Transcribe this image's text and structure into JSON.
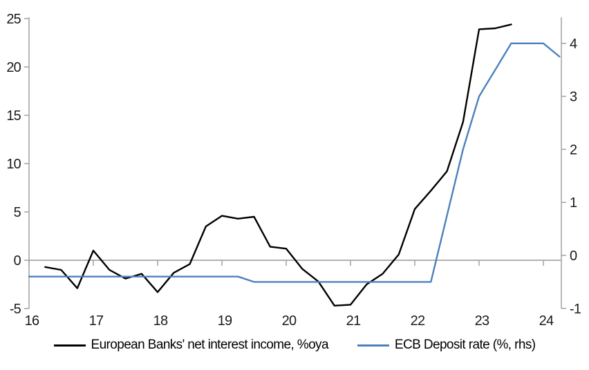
{
  "chart_data": {
    "type": "line",
    "title": "",
    "x_axis": {
      "ticks": [
        16,
        17,
        18,
        19,
        20,
        21,
        22,
        23,
        24
      ],
      "min": 16,
      "max": 24.28
    },
    "left_axis": {
      "ticks": [
        -5,
        0,
        5,
        10,
        15,
        20,
        25
      ],
      "min": -5,
      "max": 25
    },
    "right_axis": {
      "ticks": [
        -1,
        0,
        1,
        2,
        3,
        4
      ],
      "min": -1,
      "max": 4.5
    },
    "grid": "zero-line-only",
    "legend_position": "bottom",
    "series": [
      {
        "name": "European Banks' net interest income, %oya",
        "axis": "left",
        "color": "#000000",
        "x": [
          16.25,
          16.5,
          16.75,
          17.0,
          17.25,
          17.5,
          17.75,
          18.0,
          18.25,
          18.5,
          18.75,
          19.0,
          19.25,
          19.5,
          19.75,
          20.0,
          20.25,
          20.5,
          20.75,
          21.0,
          21.25,
          21.5,
          21.75,
          22.0,
          22.25,
          22.5,
          22.75,
          23.0,
          23.25,
          23.5
        ],
        "values": [
          -0.7,
          -1.0,
          -2.9,
          1.0,
          -1.0,
          -1.9,
          -1.4,
          -3.3,
          -1.3,
          -0.4,
          3.5,
          4.6,
          4.3,
          4.5,
          1.4,
          1.2,
          -0.9,
          -2.2,
          -4.7,
          -4.6,
          -2.5,
          -1.4,
          0.6,
          5.3,
          7.2,
          9.2,
          14.3,
          23.9,
          24.0,
          24.4
        ]
      },
      {
        "name": "ECB Deposit rate (%, rhs)",
        "axis": "right",
        "color": "#4b80bd",
        "x": [
          16.0,
          16.25,
          16.5,
          16.75,
          17.0,
          17.25,
          17.5,
          17.75,
          18.0,
          18.25,
          18.5,
          18.75,
          19.0,
          19.25,
          19.5,
          19.75,
          20.0,
          20.25,
          20.5,
          20.75,
          21.0,
          21.25,
          21.5,
          21.75,
          22.0,
          22.25,
          22.5,
          22.75,
          23.0,
          23.25,
          23.5,
          23.75,
          24.0,
          24.25
        ],
        "values": [
          -0.4,
          -0.4,
          -0.4,
          -0.4,
          -0.4,
          -0.4,
          -0.4,
          -0.4,
          -0.4,
          -0.4,
          -0.4,
          -0.4,
          -0.4,
          -0.4,
          -0.5,
          -0.5,
          -0.5,
          -0.5,
          -0.5,
          -0.5,
          -0.5,
          -0.5,
          -0.5,
          -0.5,
          -0.5,
          -0.5,
          0.75,
          2.0,
          3.0,
          3.5,
          4.0,
          4.0,
          4.0,
          3.75
        ]
      }
    ]
  },
  "legend": {
    "series1": "European Banks' net interest income, %oya",
    "series2": "ECB Deposit rate (%, rhs)"
  },
  "colors": {
    "series1": "#000000",
    "series2": "#4b80bd",
    "axis": "#a6a6a6",
    "zero_line": "#a6a6a6",
    "text": "#1a1a1a"
  }
}
